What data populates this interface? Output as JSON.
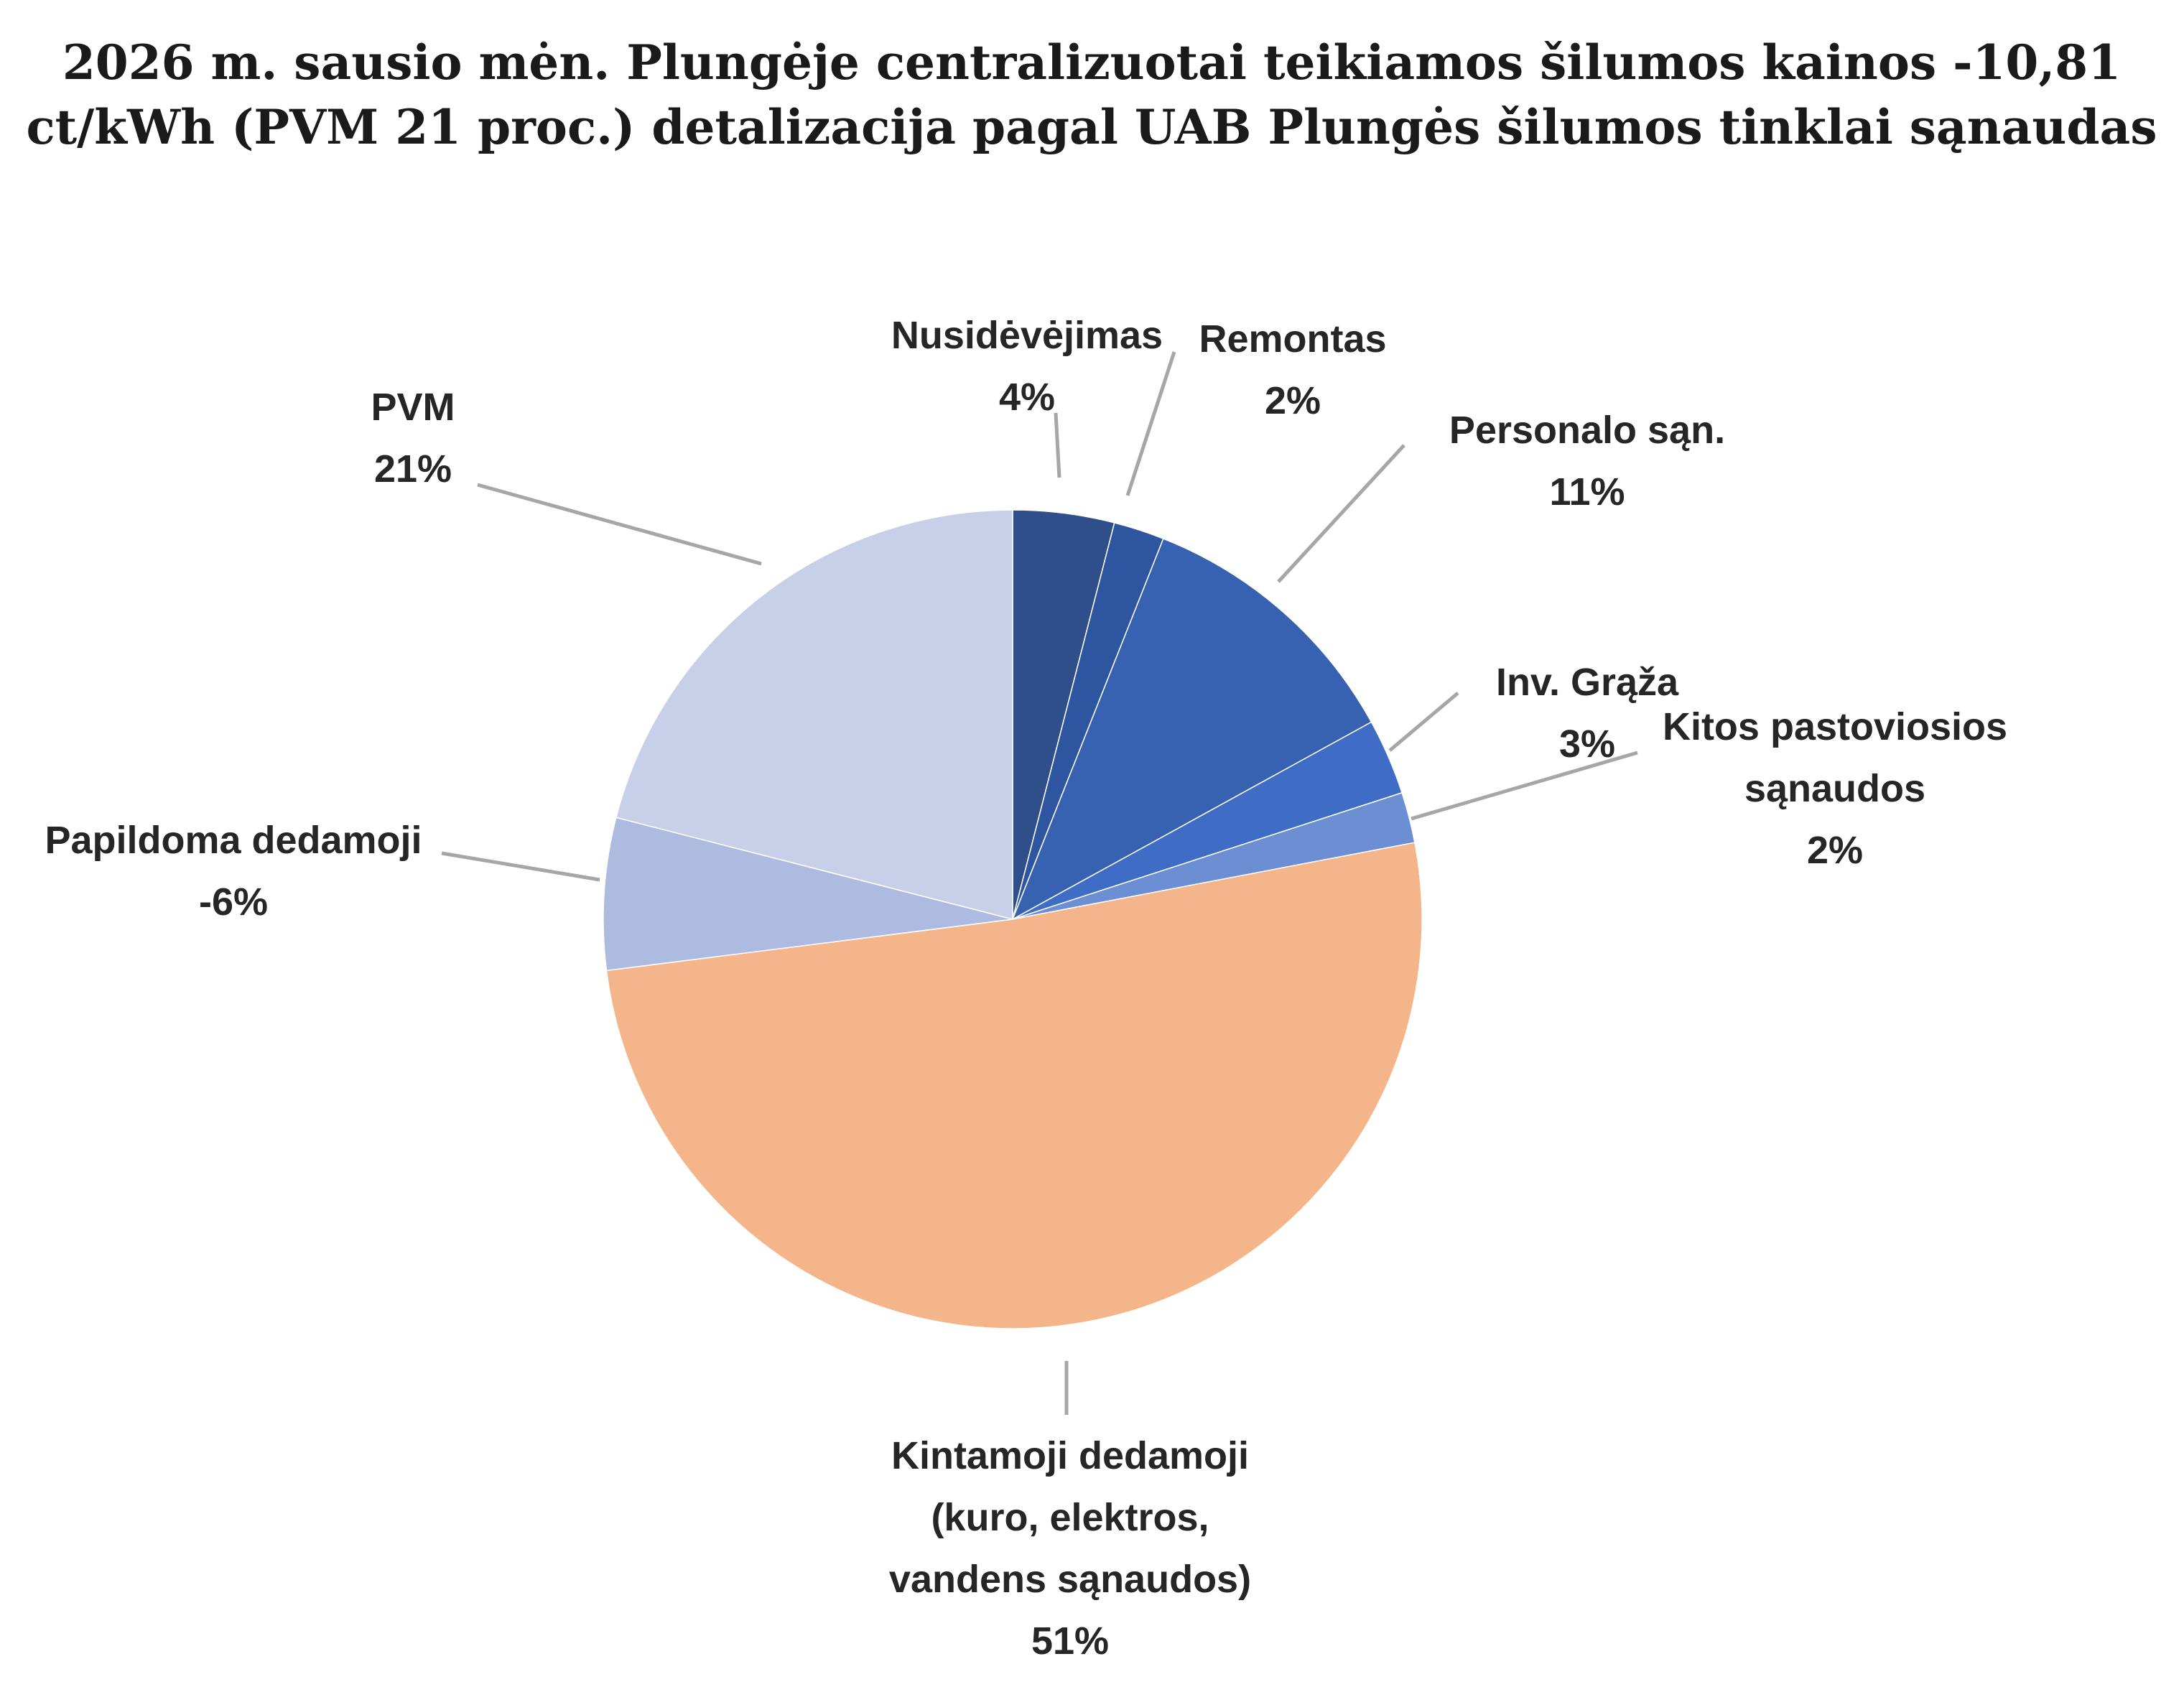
{
  "chart_data": {
    "type": "pie",
    "title": [
      "2026 m. sausio mėn. Plungėje centralizuotai teikiamos šilumos kainos -10,81",
      "ct/kWh (PVM 21 proc.) detalizacija pagal UAB Plungės šilumos tinklai sąnaudas"
    ],
    "slices": [
      {
        "name": "Nusidėvėjimas",
        "label_lines": [
          "Nusidėvėjimas",
          "4%"
        ],
        "value": 4,
        "color": "#2f4f8a"
      },
      {
        "name": "Remontas",
        "label_lines": [
          "Remontas",
          "2%"
        ],
        "value": 2,
        "color": "#2e56a0"
      },
      {
        "name": "Personalo sąn.",
        "label_lines": [
          "Personalo sąn.",
          "11%"
        ],
        "value": 11,
        "color": "#3762b1"
      },
      {
        "name": "Inv. Grąža",
        "label_lines": [
          "Inv. Grąža",
          "3%"
        ],
        "value": 3,
        "color": "#3f6cc4"
      },
      {
        "name": "Kitos pastoviosios sąnaudos",
        "label_lines": [
          "Kitos pastoviosios",
          "sąnaudos",
          "2%"
        ],
        "value": 2,
        "color": "#6c8fd3"
      },
      {
        "name": "Kintamoji dedamoji (kuro, elektros, vandens sąnaudos)",
        "label_lines": [
          "Kintamoji dedamoji",
          "(kuro, elektros,",
          "vandens sąnaudos)",
          "51%"
        ],
        "value": 51,
        "color": "#f3b589"
      },
      {
        "name": "Papildoma dedamoji",
        "label_lines": [
          "Papildoma dedamoji",
          "-6%"
        ],
        "value": -6,
        "color": "#aebbe0"
      },
      {
        "name": "PVM",
        "label_lines": [
          "PVM",
          "21%"
        ],
        "value": 21,
        "color": "#c8cfe8"
      }
    ],
    "start_angle_deg": 0,
    "direction": "clockwise",
    "legend": "none",
    "data_labels": "category-and-percent"
  }
}
